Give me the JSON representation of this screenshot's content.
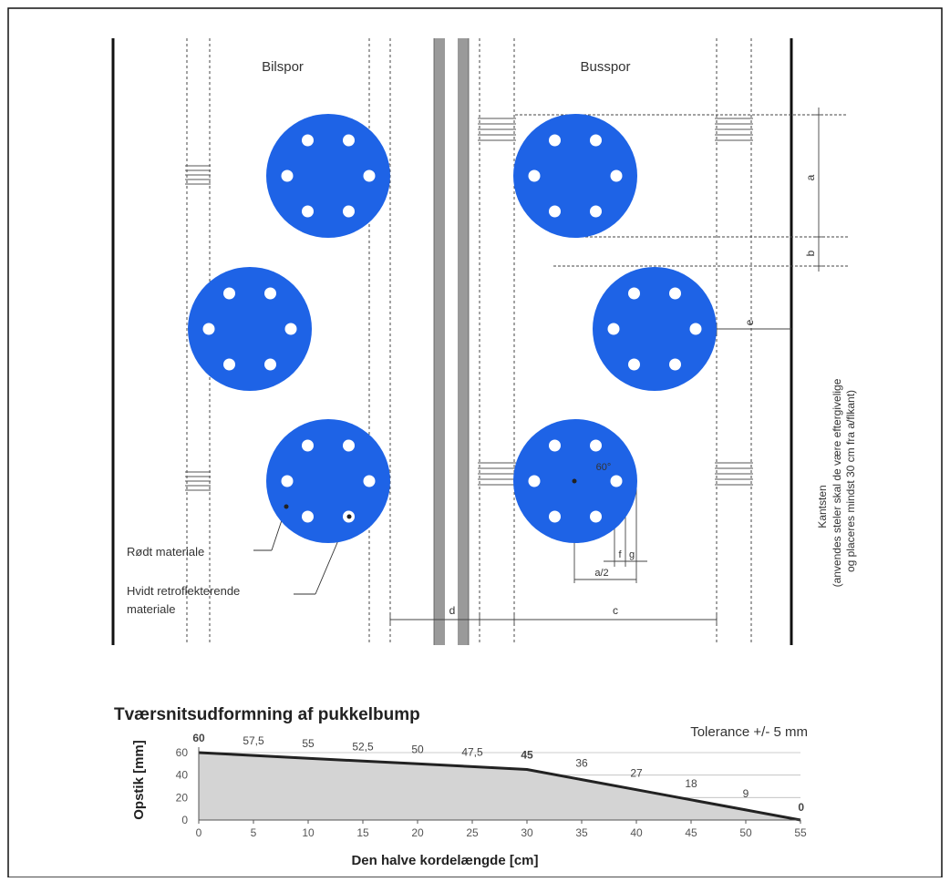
{
  "plan": {
    "lane_left_label": "Bilspor",
    "lane_right_label": "Busspor",
    "label_red_material": "Rødt materiale",
    "label_white_material_line1": "Hvidt retroflekterende",
    "label_white_material_line2": "materiale",
    "dim_a": "a",
    "dim_b": "b",
    "dim_c": "c",
    "dim_d": "d",
    "dim_e": "e",
    "dim_f": "f",
    "dim_g": "g",
    "dim_a2": "a/2",
    "dim_angle": "60°",
    "kantsten_line1": "Kantsten",
    "kantsten_line2": "(anvendes steler skal de være eftergivelige",
    "kantsten_line3": "og placeres mindst 30 cm fra a/flkant)",
    "colors": {
      "disc": "#1e63e6",
      "dot": "#ffffff",
      "line": "#222222"
    }
  },
  "chart_title": "Tværsnitsudformning af pukkelbump",
  "tolerance": "Tolerance +/- 5 mm",
  "chart_data": {
    "type": "area",
    "title": "Tværsnitsudformning af pukkelbump",
    "xlabel": "Den halve kordelængde [cm]",
    "ylabel": "Opstik [mm]",
    "x": [
      0,
      5,
      10,
      15,
      20,
      25,
      30,
      35,
      40,
      45,
      50,
      55
    ],
    "y": [
      60,
      57.5,
      55,
      52.5,
      50,
      47.5,
      45,
      36,
      27,
      18,
      9,
      0
    ],
    "point_labels": [
      "60",
      "57,5",
      "55",
      "52,5",
      "50",
      "47,5",
      "45",
      "36",
      "27",
      "18",
      "9",
      "0"
    ],
    "xticks": [
      "0",
      "5",
      "10",
      "15",
      "20",
      "25",
      "30",
      "35",
      "40",
      "45",
      "50",
      "55"
    ],
    "yticks": [
      "0",
      "20",
      "40",
      "60"
    ],
    "xlim": [
      0,
      55
    ],
    "ylim": [
      0,
      60
    ],
    "fill_color": "#d4d4d4",
    "line_color": "#222222"
  }
}
